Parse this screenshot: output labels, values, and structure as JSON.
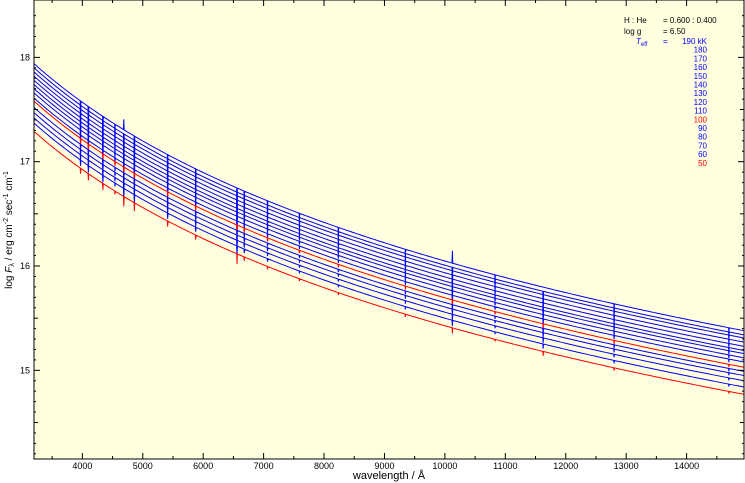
{
  "chart_data": {
    "type": "line",
    "xlabel": "wavelength / Å",
    "ylabel": {
      "prefix": "log ",
      "F": "F",
      "sub": "λ",
      "units": " / erg cm",
      "sup1": "-2",
      "sec": " sec",
      "sup2": "-1",
      "cm": " cm",
      "sup3": "-1"
    },
    "xlim": [
      3200,
      14950
    ],
    "ylim": [
      14.15,
      18.55
    ],
    "xticks": [
      4000,
      5000,
      6000,
      7000,
      8000,
      9000,
      10000,
      11000,
      12000,
      13000,
      14000
    ],
    "yticks": [
      15,
      16,
      17,
      18
    ],
    "grid": false,
    "background": "#ffffe0",
    "params": {
      "hhe_label": "H : He",
      "hhe_value": "= 0.600 : 0.400",
      "logg_label": "log g",
      "logg_value": "= 6.50",
      "teff_label": "T",
      "teff_sub": "eff",
      "teff_eq": "="
    },
    "legend": {
      "placement": "top-right",
      "entries": [
        "190 kK",
        "180",
        "170",
        "160",
        "150",
        "140",
        "130",
        "120",
        "110",
        "100",
        "90",
        "80",
        "70",
        "60",
        "50"
      ]
    },
    "series": [
      {
        "teff": 190,
        "color": "#0000ff",
        "y_start": 17.94,
        "y_end": 15.38
      },
      {
        "teff": 180,
        "color": "#0000ff",
        "y_start": 17.9,
        "y_end": 15.34
      },
      {
        "teff": 170,
        "color": "#0000ff",
        "y_start": 17.86,
        "y_end": 15.31
      },
      {
        "teff": 160,
        "color": "#0000ff",
        "y_start": 17.82,
        "y_end": 15.27
      },
      {
        "teff": 150,
        "color": "#0000ff",
        "y_start": 17.78,
        "y_end": 15.23
      },
      {
        "teff": 140,
        "color": "#0000ff",
        "y_start": 17.74,
        "y_end": 15.19
      },
      {
        "teff": 130,
        "color": "#0000ff",
        "y_start": 17.7,
        "y_end": 15.16
      },
      {
        "teff": 120,
        "color": "#0000ff",
        "y_start": 17.66,
        "y_end": 15.12
      },
      {
        "teff": 110,
        "color": "#0000ff",
        "y_start": 17.61,
        "y_end": 15.08
      },
      {
        "teff": 100,
        "color": "#ff0000",
        "y_start": 17.58,
        "y_end": 15.03
      },
      {
        "teff": 90,
        "color": "#0000ff",
        "y_start": 17.52,
        "y_end": 14.99
      },
      {
        "teff": 80,
        "color": "#0000ff",
        "y_start": 17.47,
        "y_end": 14.95
      },
      {
        "teff": 70,
        "color": "#0000ff",
        "y_start": 17.42,
        "y_end": 14.9
      },
      {
        "teff": 60,
        "color": "#0000ff",
        "y_start": 17.37,
        "y_end": 14.84
      },
      {
        "teff": 50,
        "color": "#ff0000",
        "y_start": 17.29,
        "y_end": 14.77
      }
    ],
    "absorption_lines": [
      {
        "x": 3970,
        "depth": 0.1
      },
      {
        "x": 4100,
        "depth": 0.12
      },
      {
        "x": 4340,
        "depth": 0.12
      },
      {
        "x": 4540,
        "depth": 0.06
      },
      {
        "x": 4686,
        "depth": 0.18
      },
      {
        "x": 4861,
        "depth": 0.15
      },
      {
        "x": 5412,
        "depth": 0.1
      },
      {
        "x": 5876,
        "depth": 0.08
      },
      {
        "x": 6560,
        "depth": 0.18
      },
      {
        "x": 6680,
        "depth": 0.07
      },
      {
        "x": 7065,
        "depth": 0.05
      },
      {
        "x": 7593,
        "depth": 0.04
      },
      {
        "x": 8237,
        "depth": 0.04
      },
      {
        "x": 9345,
        "depth": 0.05
      },
      {
        "x": 10124,
        "depth": 0.1
      },
      {
        "x": 10830,
        "depth": 0.04
      },
      {
        "x": 11626,
        "depth": 0.08
      },
      {
        "x": 12800,
        "depth": 0.05
      },
      {
        "x": 14700,
        "depth": 0.04
      }
    ],
    "emission_lines": [
      {
        "x": 4686,
        "height": 0.28
      },
      {
        "x": 6560,
        "height": 0.05
      },
      {
        "x": 10124,
        "height": 0.22
      },
      {
        "x": 11626,
        "height": 0.08
      }
    ],
    "colors": {
      "blue": "#0000ff",
      "red": "#ff0000",
      "axis": "#000000",
      "plot_bg": "#ffffe0"
    }
  }
}
